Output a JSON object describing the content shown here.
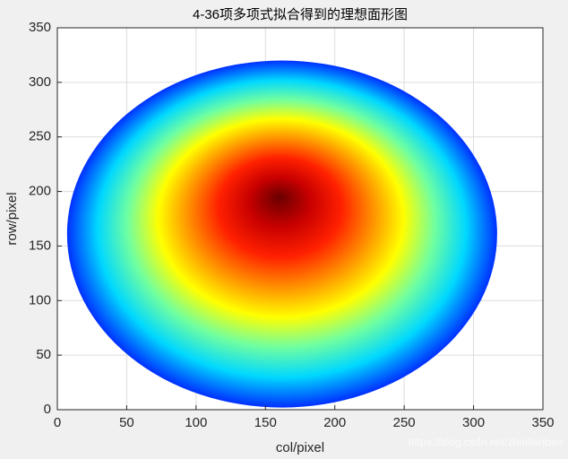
{
  "chart_data": {
    "type": "surface",
    "title": "4-36项多项式拟合得到的理想面形图",
    "x_label": "col/pixel",
    "y_label": "row/pixel",
    "xlim": [
      0,
      350
    ],
    "ylim": [
      0,
      350
    ],
    "xticks": [
      0,
      50,
      100,
      150,
      200,
      250,
      300,
      350
    ],
    "yticks": [
      0,
      50,
      100,
      150,
      200,
      250,
      300,
      350
    ],
    "grid": true,
    "ellipse": {
      "cx": 162,
      "cy": 161,
      "rx": 155,
      "ry": 159
    },
    "peak": {
      "x": 160,
      "y": 195
    },
    "colormap": [
      "#6a0000",
      "#c80000",
      "#ff2000",
      "#ff9000",
      "#ffff00",
      "#70ffa0",
      "#00d8ff",
      "#0030ff"
    ],
    "watermark": "https://blog.csdn.net/zhaitianbao"
  }
}
